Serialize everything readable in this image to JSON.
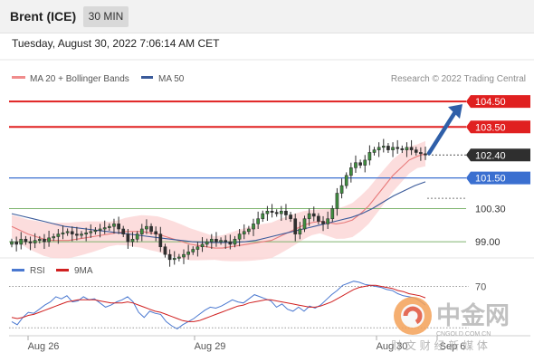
{
  "header": {
    "title": "Brent (ICE)",
    "timeframe": "30 MIN"
  },
  "timestamp": "Tuesday, August 30, 2022 7:06:14 AM CET",
  "legend": {
    "ma20_label": "MA 20 + Bollinger Bands",
    "ma50_label": "MA 50",
    "credit": "Research © 2022 Trading Central"
  },
  "rsi_legend": {
    "rsi_label": "RSI",
    "ma_label": "9MA"
  },
  "colors": {
    "bullish": "#ffffff",
    "bearish": "#2f2f2f",
    "candle_up_fill": "#3f8f3f",
    "ma20": "#e87a7a",
    "ma50": "#3a5a9a",
    "bollinger": "#fbd4d4",
    "resistance": "#e02020",
    "support": "#3a6fd0",
    "pivot": "#7fb56f",
    "rsi": "#4a78d0",
    "rsi_ma": "#d02020",
    "arrow": "#2f5fa8"
  },
  "chart_data": {
    "type": "candlestick",
    "ylim": [
      98.4,
      105.0
    ],
    "x_tick_labels": [
      "Aug 26",
      "Aug 29",
      "Aug 30",
      "Sep 6"
    ],
    "levels": [
      {
        "label": "104.50",
        "value": 104.5,
        "kind": "resistance"
      },
      {
        "label": "103.50",
        "value": 103.5,
        "kind": "resistance"
      },
      {
        "label": "102.40",
        "value": 102.4,
        "kind": "last"
      },
      {
        "label": "101.50",
        "value": 101.5,
        "kind": "support"
      },
      {
        "label": "100.30",
        "value": 100.3,
        "kind": "pivot"
      },
      {
        "label": "99.00",
        "value": 99.0,
        "kind": "pivot"
      }
    ],
    "close": [
      99.0,
      98.9,
      99.1,
      99.0,
      98.95,
      99.05,
      99.1,
      99.0,
      99.15,
      99.2,
      99.3,
      99.35,
      99.4,
      99.3,
      99.25,
      99.3,
      99.35,
      99.4,
      99.45,
      99.5,
      99.55,
      99.6,
      99.7,
      99.5,
      99.3,
      99.0,
      99.1,
      99.3,
      99.5,
      99.6,
      99.4,
      99.3,
      98.8,
      98.5,
      98.3,
      98.35,
      98.4,
      98.5,
      98.6,
      98.7,
      98.8,
      98.9,
      99.0,
      99.1,
      99.0,
      99.05,
      99.0,
      98.9,
      99.1,
      99.3,
      99.4,
      99.5,
      99.7,
      99.9,
      100.1,
      100.2,
      100.15,
      100.1,
      100.2,
      100.05,
      99.9,
      99.3,
      99.5,
      99.9,
      100.1,
      100.0,
      99.8,
      99.7,
      99.9,
      100.3,
      100.9,
      101.2,
      101.6,
      101.9,
      102.1,
      102.0,
      102.2,
      102.5,
      102.6,
      102.7,
      102.75,
      102.6,
      102.7,
      102.65,
      102.6,
      102.7,
      102.6,
      102.5,
      102.45,
      102.4
    ],
    "ma20": [
      99.6,
      99.45,
      99.3,
      99.2,
      99.1,
      99.05,
      99.05,
      99.05,
      99.1,
      99.15,
      99.2,
      99.25,
      99.3,
      99.35,
      99.4,
      99.4,
      99.4,
      99.35,
      99.3,
      99.2,
      99.1,
      99.0,
      98.9,
      98.85,
      98.8,
      98.75,
      98.75,
      98.8,
      98.85,
      98.9,
      98.95,
      99.0,
      99.05,
      99.2,
      99.35,
      99.5,
      99.65,
      99.75,
      99.8,
      99.75,
      99.7,
      99.75,
      99.85,
      100.1,
      100.4,
      100.8,
      101.2,
      101.6,
      101.9,
      102.2,
      102.35,
      102.45
    ],
    "ma50": [
      100.1,
      100.0,
      99.9,
      99.8,
      99.7,
      99.6,
      99.55,
      99.5,
      99.45,
      99.4,
      99.35,
      99.3,
      99.25,
      99.2,
      99.15,
      99.1,
      99.05,
      99.0,
      98.98,
      98.97,
      98.97,
      98.98,
      99.0,
      99.05,
      99.15,
      99.25,
      99.35,
      99.45,
      99.55,
      99.65,
      99.75,
      99.85,
      99.95,
      100.1,
      100.3,
      100.55,
      100.8,
      101.0,
      101.2,
      101.35
    ],
    "projection": {
      "from": 102.4,
      "to": 104.5
    },
    "rsi": {
      "ylim": [
        25,
        80
      ],
      "y_tick_labels": [
        "70"
      ],
      "rsi_values": [
        36,
        33,
        40,
        45,
        44,
        48,
        52,
        55,
        60,
        58,
        61,
        55,
        56,
        60,
        57,
        58,
        54,
        50,
        52,
        55,
        57,
        60,
        55,
        45,
        40,
        46,
        44,
        43,
        36,
        32,
        29,
        33,
        36,
        39,
        43,
        47,
        50,
        49,
        51,
        54,
        57,
        55,
        54,
        58,
        62,
        60,
        58,
        56,
        50,
        53,
        48,
        46,
        50,
        46,
        51,
        49,
        52,
        57,
        62,
        66,
        71,
        73,
        75,
        74,
        72,
        71,
        70,
        69,
        67,
        66,
        63,
        61,
        60,
        59,
        56,
        52
      ],
      "ma_values": [
        40,
        39,
        40,
        42,
        43,
        45,
        47,
        49,
        51,
        53,
        55,
        56,
        57,
        57,
        57,
        57,
        56,
        55,
        54,
        54,
        54,
        55,
        54,
        52,
        50,
        48,
        46,
        45,
        43,
        41,
        39,
        37,
        36,
        36,
        37,
        39,
        41,
        43,
        45,
        47,
        49,
        51,
        52,
        54,
        55,
        56,
        57,
        57,
        56,
        55,
        54,
        53,
        52,
        51,
        50,
        50,
        51,
        53,
        55,
        58,
        61,
        64,
        67,
        69,
        70,
        71,
        71,
        70,
        69,
        68,
        66,
        65,
        63,
        62,
        61,
        59
      ]
    }
  },
  "watermark": {
    "brand_cn": "中金网",
    "domain": "CNGOLD.COM.CN",
    "tagline_cn": "财 文 财 经 新 媒 体"
  }
}
